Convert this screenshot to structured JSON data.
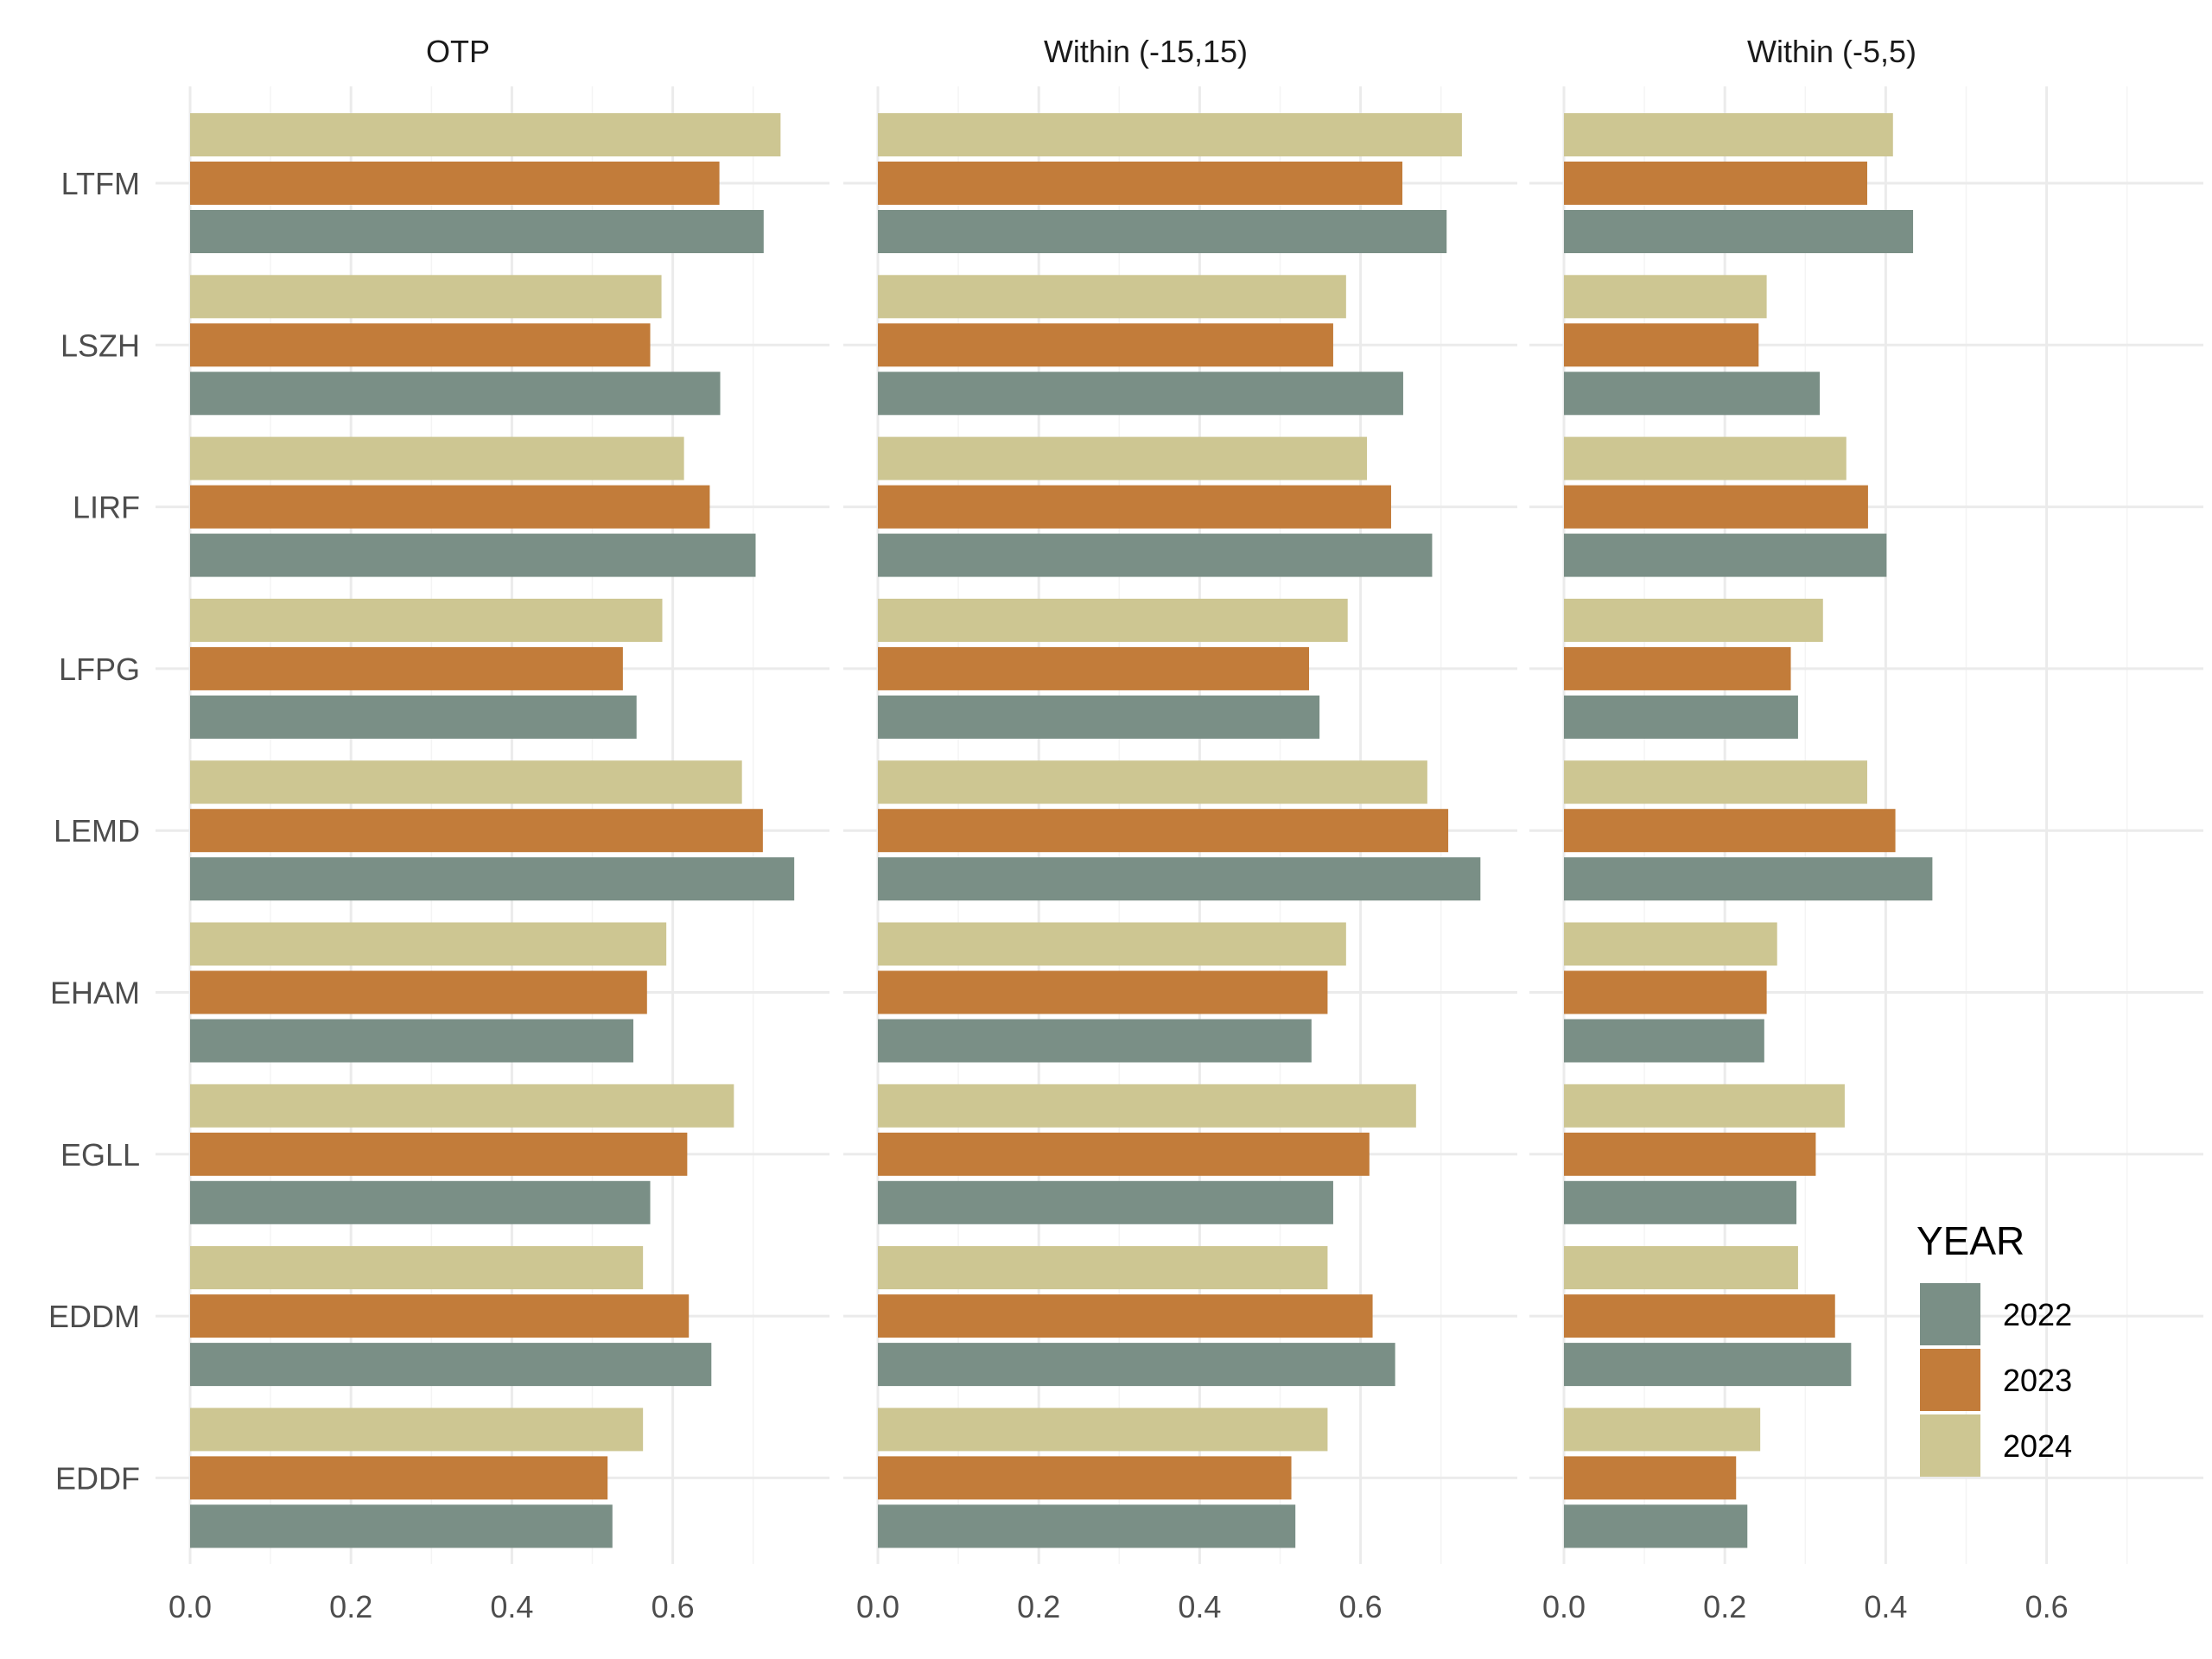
{
  "chart_data": {
    "type": "bar",
    "orientation": "horizontal",
    "facets": [
      "OTP",
      "Within (-15,15)",
      "Within (-5,5)"
    ],
    "categories": [
      "LTFM",
      "LSZH",
      "LIRF",
      "LFPG",
      "LEMD",
      "EHAM",
      "EGLL",
      "EDDM",
      "EDDF"
    ],
    "legend_title": "YEAR",
    "legend_position": "bottom-right",
    "grid": true,
    "xlim": [
      0,
      0.75
    ],
    "x_ticks": [
      "0.0",
      "0.2",
      "0.4",
      "0.6"
    ],
    "x_tick_values": [
      0.0,
      0.2,
      0.4,
      0.6
    ],
    "colors": {
      "2022": "#7a8f86",
      "2023": "#c27c3a",
      "2024": "#cdc692"
    },
    "series": [
      {
        "name": "2022",
        "values": {
          "OTP": [
            0.713,
            0.659,
            0.703,
            0.555,
            0.751,
            0.551,
            0.572,
            0.648,
            0.525
          ],
          "Within (-15,15)": [
            0.707,
            0.653,
            0.689,
            0.549,
            0.749,
            0.539,
            0.566,
            0.643,
            0.519
          ],
          "Within (-5,5)": [
            0.434,
            0.318,
            0.401,
            0.291,
            0.458,
            0.249,
            0.289,
            0.357,
            0.228
          ]
        }
      },
      {
        "name": "2023",
        "values": {
          "OTP": [
            0.658,
            0.572,
            0.646,
            0.538,
            0.712,
            0.568,
            0.618,
            0.62,
            0.519
          ],
          "Within (-15,15)": [
            0.652,
            0.566,
            0.638,
            0.536,
            0.709,
            0.559,
            0.611,
            0.615,
            0.514
          ],
          "Within (-5,5)": [
            0.377,
            0.242,
            0.378,
            0.282,
            0.412,
            0.252,
            0.313,
            0.337,
            0.214
          ]
        }
      },
      {
        "name": "2024",
        "values": {
          "OTP": [
            0.734,
            0.586,
            0.614,
            0.587,
            0.686,
            0.592,
            0.676,
            0.563,
            0.563
          ],
          "Within (-15,15)": [
            0.726,
            0.582,
            0.608,
            0.584,
            0.683,
            0.582,
            0.669,
            0.559,
            0.559
          ],
          "Within (-5,5)": [
            0.409,
            0.252,
            0.351,
            0.322,
            0.377,
            0.265,
            0.349,
            0.291,
            0.244
          ]
        }
      }
    ]
  }
}
